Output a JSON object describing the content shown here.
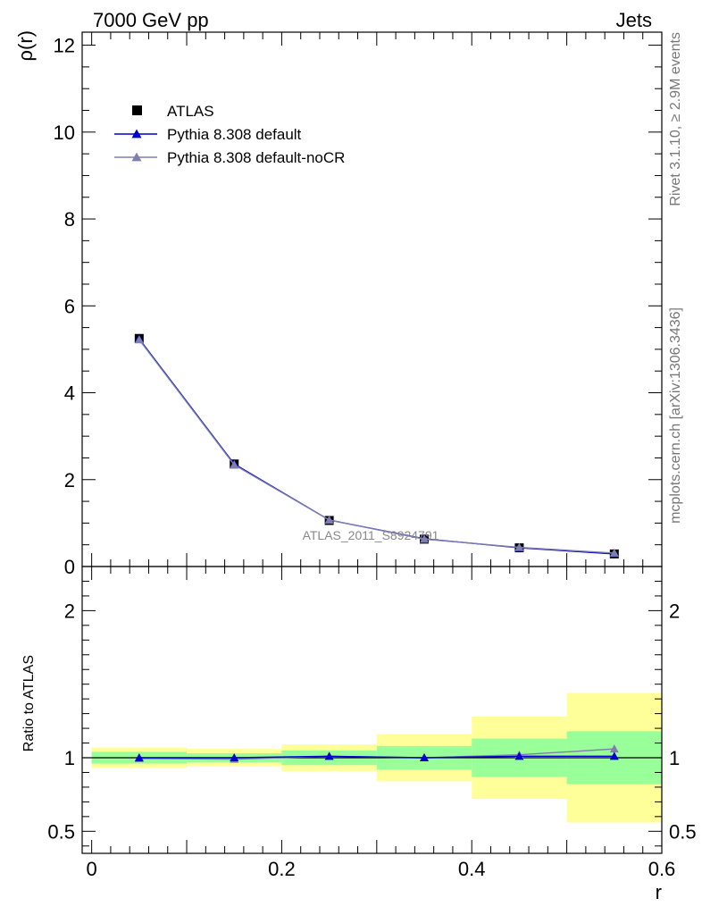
{
  "header": {
    "left": "7000 GeV pp",
    "right": "Jets"
  },
  "side_labels": {
    "rivet": "Rivet 3.1.10, ≥ 2.9M events",
    "mcplots": "mcplots.cern.ch [arXiv:1306.3436]"
  },
  "watermark": "ATLAS_2011_S8924791",
  "chart_data": [
    {
      "type": "scatter",
      "panel": "main",
      "ylabel": "ρ(r)",
      "xlabel": "r",
      "xlim": [
        -0.01,
        0.6
      ],
      "ylim": [
        0,
        12.3
      ],
      "y_ticks": [
        0,
        2,
        4,
        6,
        8,
        10,
        12
      ],
      "y_tick_labels": [
        "0",
        "2",
        "4",
        "6",
        "8",
        "10",
        "12"
      ],
      "legend_position": "top-left",
      "x": [
        0.05,
        0.15,
        0.25,
        0.35,
        0.45,
        0.55
      ],
      "series": [
        {
          "name": "ATLAS",
          "marker": "square",
          "color": "#000000",
          "values": [
            5.25,
            2.36,
            1.06,
            0.63,
            0.43,
            0.29
          ]
        },
        {
          "name": "Pythia 8.308 default",
          "marker": "triangle",
          "color": "#0000cc",
          "values": [
            5.24,
            2.36,
            1.07,
            0.64,
            0.43,
            0.29
          ]
        },
        {
          "name": "Pythia 8.308 default-noCR",
          "marker": "triangle",
          "color": "#7f7faf",
          "values": [
            5.22,
            2.34,
            1.07,
            0.63,
            0.44,
            0.31
          ]
        }
      ]
    },
    {
      "type": "line",
      "panel": "ratio",
      "ylabel": "Ratio to ATLAS",
      "xlabel": "r",
      "xlim": [
        -0.01,
        0.6
      ],
      "ylim": [
        0.35,
        2.3
      ],
      "y_ticks": [
        0.5,
        1,
        2
      ],
      "y_tick_labels": [
        "0.5",
        "1",
        "2"
      ],
      "x_ticks": [
        0,
        0.2,
        0.4,
        0.6
      ],
      "x_tick_labels": [
        "0",
        "0.2",
        "0.4",
        "0.6"
      ],
      "bins": [
        [
          0.0,
          0.1
        ],
        [
          0.1,
          0.2
        ],
        [
          0.2,
          0.3
        ],
        [
          0.3,
          0.4
        ],
        [
          0.4,
          0.5
        ],
        [
          0.5,
          0.6
        ]
      ],
      "band_yellow": [
        [
          0.93,
          1.07
        ],
        [
          0.94,
          1.06
        ],
        [
          0.91,
          1.09
        ],
        [
          0.84,
          1.16
        ],
        [
          0.72,
          1.28
        ],
        [
          0.56,
          1.44
        ]
      ],
      "band_green": [
        [
          0.96,
          1.04
        ],
        [
          0.97,
          1.03
        ],
        [
          0.95,
          1.05
        ],
        [
          0.92,
          1.08
        ],
        [
          0.87,
          1.13
        ],
        [
          0.82,
          1.18
        ]
      ],
      "reference": 1,
      "x": [
        0.05,
        0.15,
        0.25,
        0.35,
        0.45,
        0.55
      ],
      "series": [
        {
          "name": "Pythia 8.308 default",
          "color": "#0000cc",
          "values": [
            1.0,
            1.0,
            1.01,
            1.0,
            1.01,
            1.01
          ]
        },
        {
          "name": "Pythia 8.308 default-noCR",
          "color": "#7f7faf",
          "values": [
            0.995,
            0.99,
            1.01,
            1.0,
            1.02,
            1.06
          ]
        }
      ]
    }
  ],
  "colors": {
    "band_yellow": "#ffff99",
    "band_green": "#99ff99",
    "watermark": "#888888",
    "side_text": "#777777"
  }
}
